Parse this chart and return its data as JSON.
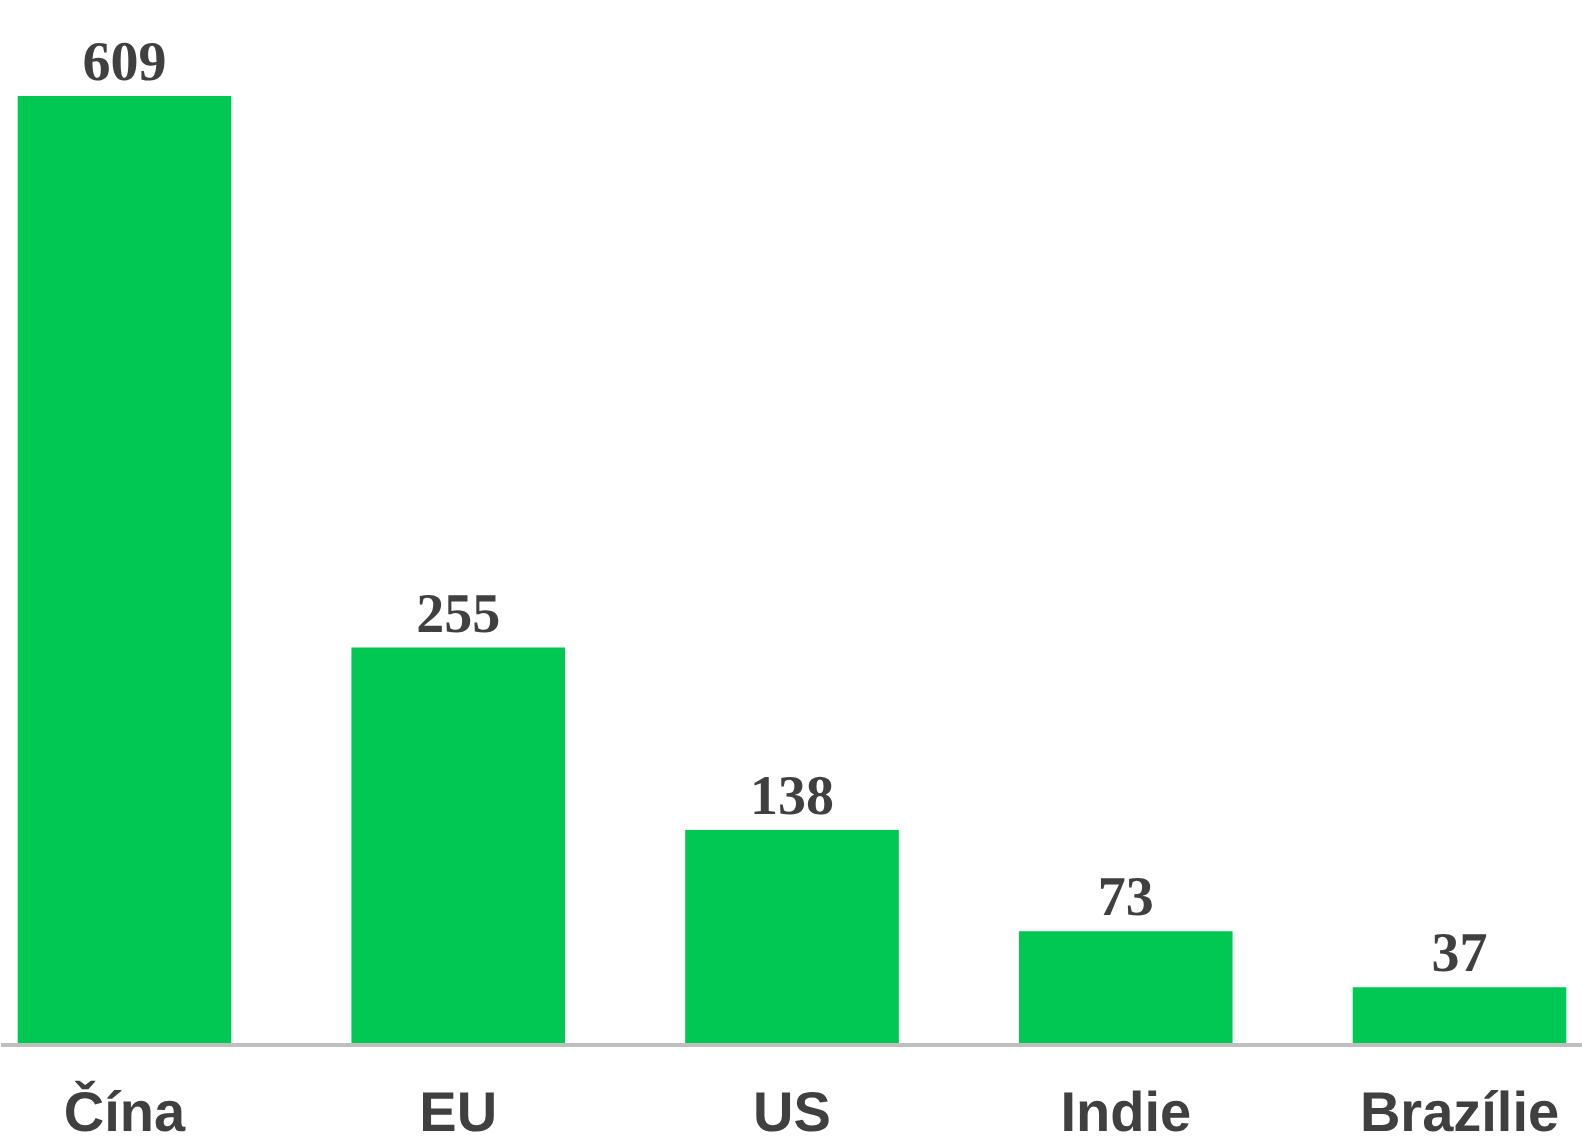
{
  "chart_data": {
    "type": "bar",
    "categories": [
      "Čína",
      "EU",
      "US",
      "Indie",
      "Brazílie"
    ],
    "values": [
      609,
      255,
      138,
      73,
      37
    ],
    "color": "#00c853",
    "data_labels": true,
    "grid": false
  }
}
